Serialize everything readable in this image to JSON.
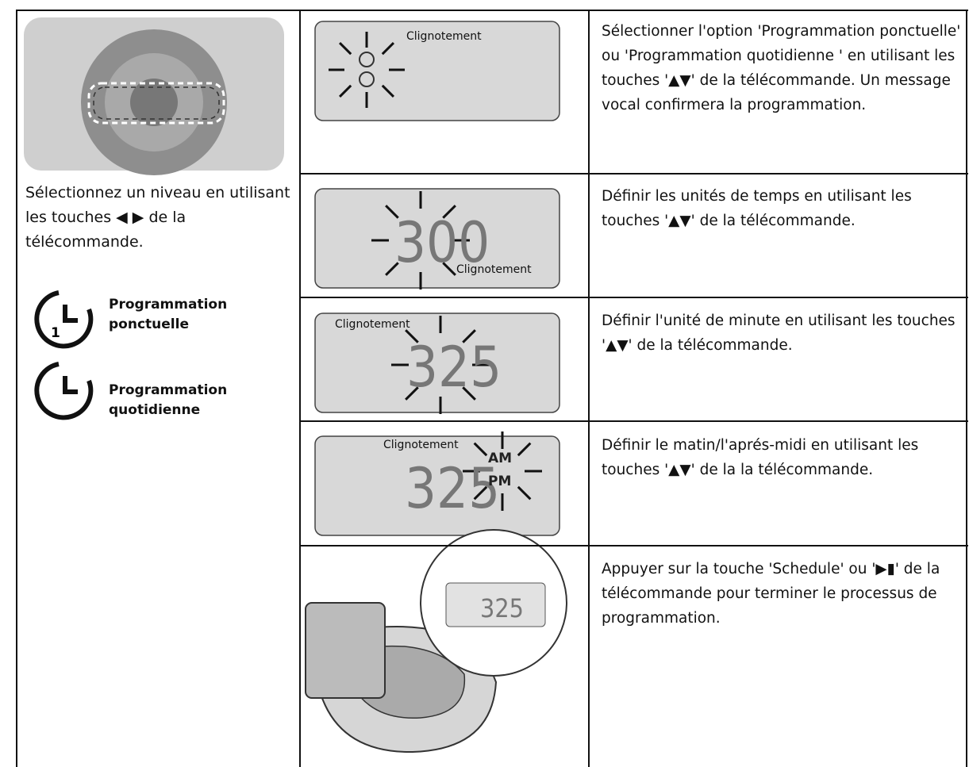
{
  "left": {
    "caption": "Sélectionnez un niveau en utilisant les touches ◀ ▶ de la télécommande.",
    "options": [
      {
        "badge": "1",
        "label": "Programmation ponctuelle"
      },
      {
        "label": "Programmation quotidienne"
      }
    ]
  },
  "rows": [
    {
      "display": {
        "blink_label": "Clignotement"
      },
      "instruction": "Sélectionner l'option 'Programmation ponctuelle' ou 'Programmation quotidienne ' en utilisant les touches '▲▼' de la télécommande. Un message vocal confirmera la programmation."
    },
    {
      "display": {
        "digits": "300",
        "blink_label": "Clignotement"
      },
      "instruction": "Définir les unités de temps en utilisant les touches '▲▼' de la télécommande."
    },
    {
      "display": {
        "digits": "325",
        "blink_label": "Clignotement"
      },
      "instruction": "Définir l'unité de minute en utilisant les touches '▲▼' de la télécommande."
    },
    {
      "display": {
        "digits": "325",
        "am": "AM",
        "pm": "PM",
        "blink_label": "Clignotement"
      },
      "instruction": "Définir le matin/l'aprés-midi en utilisant les touches '▲▼' de la la télécommande."
    },
    {
      "display": {
        "digits": "325"
      },
      "instruction": "Appuyer sur la touche 'Schedule' ou '▶▮' de la télécommande pour terminer le processus de programmation."
    }
  ]
}
